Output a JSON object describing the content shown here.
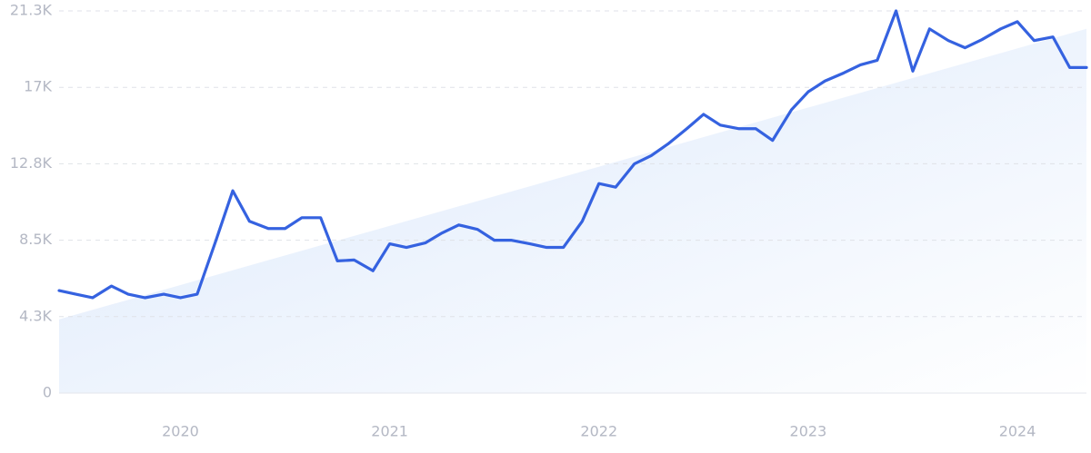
{
  "chart_data": {
    "type": "line",
    "x": [
      2019.42,
      2019.5,
      2019.58,
      2019.67,
      2019.75,
      2019.83,
      2019.92,
      2020.0,
      2020.08,
      2020.17,
      2020.25,
      2020.33,
      2020.42,
      2020.5,
      2020.58,
      2020.67,
      2020.75,
      2020.83,
      2020.92,
      2021.0,
      2021.08,
      2021.17,
      2021.25,
      2021.33,
      2021.42,
      2021.5,
      2021.58,
      2021.67,
      2021.75,
      2021.83,
      2021.92,
      2022.0,
      2022.08,
      2022.17,
      2022.25,
      2022.33,
      2022.42,
      2022.5,
      2022.58,
      2022.67,
      2022.75,
      2022.83,
      2022.92,
      2023.0,
      2023.08,
      2023.17,
      2023.25,
      2023.33,
      2023.42,
      2023.5,
      2023.58,
      2023.67,
      2023.75,
      2023.83,
      2023.92,
      2024.0,
      2024.08,
      2024.17,
      2024.25,
      2024.33
    ],
    "values": [
      5700,
      5500,
      5300,
      5950,
      5500,
      5300,
      5500,
      5300,
      5500,
      8500,
      11250,
      9550,
      9150,
      9150,
      9750,
      9750,
      7350,
      7400,
      6800,
      8300,
      8100,
      8350,
      8900,
      9350,
      9100,
      8500,
      8500,
      8300,
      8100,
      8100,
      9550,
      11650,
      11450,
      12750,
      13200,
      13850,
      14700,
      15500,
      14900,
      14700,
      14700,
      14050,
      15750,
      16750,
      17350,
      17800,
      18250,
      18500,
      21250,
      17900,
      20250,
      19600,
      19200,
      19650,
      20250,
      20650,
      19600,
      19800,
      18100,
      18100
    ],
    "color": "#3562e0",
    "trend": [
      4100,
      20250
    ],
    "trend_color": "#dbe8fb",
    "xlim": [
      2019.42,
      2024.33
    ],
    "xticks": [
      2020,
      2021,
      2022,
      2023,
      2024
    ],
    "ylim": [
      0,
      21250
    ],
    "yticks": [
      0,
      {
        "value": 4250,
        "label": "4.3K"
      },
      {
        "value": 8500,
        "label": "8.5K"
      },
      {
        "value": 12750,
        "label": "12.8K"
      },
      {
        "value": 17000,
        "label": "17K"
      },
      {
        "value": 21250,
        "label": "21.3K"
      }
    ],
    "grid": true
  }
}
